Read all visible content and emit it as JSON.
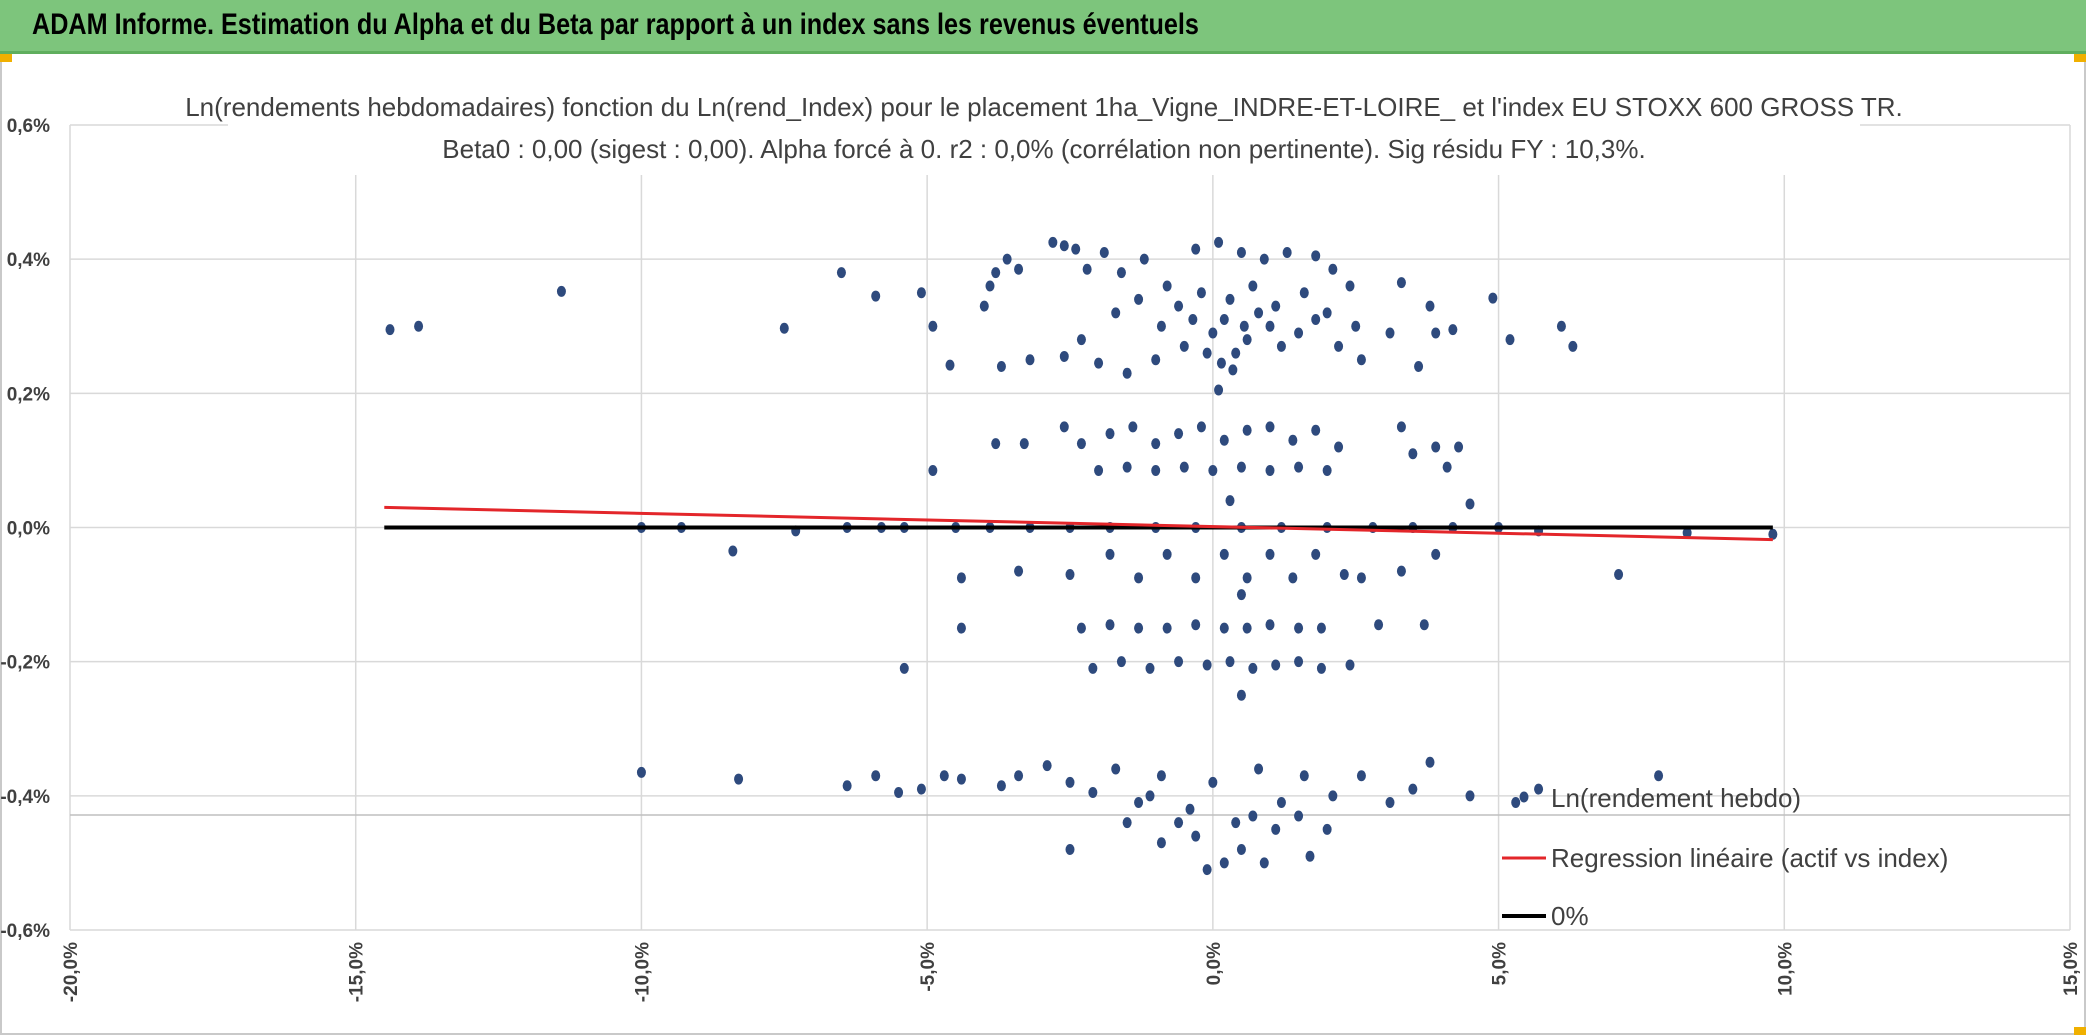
{
  "header": {
    "title": "ADAM Informe. Estimation du Alpha et du Beta par rapport à un index sans les revenus éventuels"
  },
  "colors": {
    "header_bg": "#7dc57c",
    "points": "#2e4a7d",
    "regression": "#e3262a",
    "zero_line": "#000000",
    "grid": "#d9d9d9"
  },
  "chart_data": {
    "type": "scatter",
    "title_line1": "Ln(rendements hebdomadaires) fonction du Ln(rend_Index) pour le placement 1ha_Vigne_INDRE-ET-LOIRE_ et l'index EU STOXX 600 GROSS TR.",
    "title_line2": "Beta0 : 0,00 (sigest : 0,00). Alpha forcé à 0. r2 : 0,0% (corrélation non pertinente). Sig résidu FY : 10,3%.",
    "xlim": [
      -20,
      15
    ],
    "ylim": [
      -0.6,
      0.6
    ],
    "x_ticks": [
      -20,
      -15,
      -10,
      -5,
      0,
      5,
      10,
      15
    ],
    "x_tick_labels": [
      "-20,0%",
      "-15,0%",
      "-10,0%",
      "-5,0%",
      "0,0%",
      "5,0%",
      "10,0%",
      "15,0%"
    ],
    "y_ticks": [
      0.6,
      0.4,
      0.2,
      0.0,
      -0.2,
      -0.4,
      -0.6
    ],
    "y_tick_labels": [
      "0,6%",
      "0,4%",
      "0,2%",
      "0,0%",
      "-0,2%",
      "-0,4%",
      "-0,6%"
    ],
    "grid": true,
    "legend_position": "bottom-right",
    "series": [
      {
        "name": "Ln(rendement hebdo)",
        "kind": "points"
      },
      {
        "name": "Regression linéaire (actif vs index)",
        "kind": "line",
        "x": [
          -14.5,
          9.8
        ],
        "y": [
          0.03,
          -0.018
        ]
      },
      {
        "name": "0%",
        "kind": "line",
        "x": [
          -14.5,
          9.8
        ],
        "y": [
          0.0,
          0.0
        ]
      }
    ],
    "points": [
      [
        -14.4,
        0.295
      ],
      [
        -13.9,
        0.3
      ],
      [
        -11.4,
        0.352
      ],
      [
        -7.5,
        0.297
      ],
      [
        -6.5,
        0.38
      ],
      [
        -5.9,
        0.345
      ],
      [
        -5.1,
        0.35
      ],
      [
        -4.9,
        0.3
      ],
      [
        -4.6,
        0.242
      ],
      [
        -4.0,
        0.33
      ],
      [
        -3.9,
        0.36
      ],
      [
        -3.8,
        0.38
      ],
      [
        -3.6,
        0.4
      ],
      [
        -3.4,
        0.385
      ],
      [
        -3.7,
        0.24
      ],
      [
        -3.2,
        0.25
      ],
      [
        -2.8,
        0.425
      ],
      [
        -2.6,
        0.42
      ],
      [
        -2.4,
        0.415
      ],
      [
        -2.2,
        0.385
      ],
      [
        -1.9,
        0.41
      ],
      [
        -1.6,
        0.38
      ],
      [
        -1.2,
        0.4
      ],
      [
        -0.8,
        0.36
      ],
      [
        -0.3,
        0.415
      ],
      [
        0.1,
        0.425
      ],
      [
        0.5,
        0.41
      ],
      [
        0.9,
        0.4
      ],
      [
        1.3,
        0.41
      ],
      [
        1.8,
        0.405
      ],
      [
        2.1,
        0.385
      ],
      [
        2.4,
        0.36
      ],
      [
        3.3,
        0.365
      ],
      [
        3.8,
        0.33
      ],
      [
        4.2,
        0.295
      ],
      [
        4.9,
        0.342
      ],
      [
        5.2,
        0.28
      ],
      [
        6.1,
        0.3
      ],
      [
        6.3,
        0.27
      ],
      [
        0.1,
        0.205
      ],
      [
        -2.3,
        0.28
      ],
      [
        -2.6,
        0.255
      ],
      [
        -2.0,
        0.245
      ],
      [
        -1.5,
        0.23
      ],
      [
        -1.0,
        0.25
      ],
      [
        -0.5,
        0.27
      ],
      [
        0.0,
        0.29
      ],
      [
        0.2,
        0.31
      ],
      [
        0.4,
        0.26
      ],
      [
        0.6,
        0.28
      ],
      [
        0.8,
        0.32
      ],
      [
        1.0,
        0.3
      ],
      [
        1.2,
        0.27
      ],
      [
        1.5,
        0.29
      ],
      [
        1.8,
        0.31
      ],
      [
        2.2,
        0.27
      ],
      [
        2.6,
        0.25
      ],
      [
        3.1,
        0.29
      ],
      [
        3.6,
        0.24
      ],
      [
        3.9,
        0.29
      ],
      [
        -1.7,
        0.32
      ],
      [
        -1.3,
        0.34
      ],
      [
        -0.9,
        0.3
      ],
      [
        -0.6,
        0.33
      ],
      [
        -0.2,
        0.35
      ],
      [
        0.3,
        0.34
      ],
      [
        0.7,
        0.36
      ],
      [
        1.1,
        0.33
      ],
      [
        1.6,
        0.35
      ],
      [
        2.0,
        0.32
      ],
      [
        2.5,
        0.3
      ],
      [
        -0.1,
        0.26
      ],
      [
        0.15,
        0.245
      ],
      [
        0.35,
        0.235
      ],
      [
        0.55,
        0.3
      ],
      [
        -0.35,
        0.31
      ],
      [
        -3.8,
        0.125
      ],
      [
        -3.3,
        0.125
      ],
      [
        -2.6,
        0.15
      ],
      [
        -2.3,
        0.125
      ],
      [
        -1.8,
        0.14
      ],
      [
        -1.4,
        0.15
      ],
      [
        -1.0,
        0.125
      ],
      [
        -0.6,
        0.14
      ],
      [
        -0.2,
        0.15
      ],
      [
        0.2,
        0.13
      ],
      [
        0.6,
        0.145
      ],
      [
        1.0,
        0.15
      ],
      [
        1.4,
        0.13
      ],
      [
        1.8,
        0.145
      ],
      [
        2.2,
        0.12
      ],
      [
        3.3,
        0.15
      ],
      [
        3.9,
        0.12
      ],
      [
        4.3,
        0.12
      ],
      [
        -2.0,
        0.085
      ],
      [
        -1.5,
        0.09
      ],
      [
        -1.0,
        0.085
      ],
      [
        -0.5,
        0.09
      ],
      [
        0.0,
        0.085
      ],
      [
        0.5,
        0.09
      ],
      [
        1.0,
        0.085
      ],
      [
        1.5,
        0.09
      ],
      [
        2.0,
        0.085
      ],
      [
        -4.9,
        0.085
      ],
      [
        3.5,
        0.11
      ],
      [
        4.1,
        0.09
      ],
      [
        4.5,
        0.035
      ],
      [
        0.3,
        0.04
      ],
      [
        -10.0,
        0.0
      ],
      [
        -9.3,
        0.0
      ],
      [
        -7.3,
        -0.005
      ],
      [
        -6.4,
        0.0
      ],
      [
        -5.8,
        0.0
      ],
      [
        -5.4,
        0.0
      ],
      [
        -4.5,
        0.0
      ],
      [
        -3.9,
        0.0
      ],
      [
        -3.2,
        0.0
      ],
      [
        -2.5,
        0.0
      ],
      [
        -1.8,
        0.0
      ],
      [
        -1.0,
        0.0
      ],
      [
        -0.3,
        0.0
      ],
      [
        0.5,
        0.0
      ],
      [
        1.2,
        0.0
      ],
      [
        2.0,
        0.0
      ],
      [
        2.8,
        0.0
      ],
      [
        3.5,
        0.0
      ],
      [
        4.2,
        0.0
      ],
      [
        5.0,
        0.0
      ],
      [
        5.7,
        -0.005
      ],
      [
        8.3,
        -0.008
      ],
      [
        9.8,
        -0.01
      ],
      [
        -8.4,
        -0.035
      ],
      [
        -4.4,
        -0.075
      ],
      [
        -3.4,
        -0.065
      ],
      [
        -2.5,
        -0.07
      ],
      [
        -1.8,
        -0.04
      ],
      [
        -1.3,
        -0.075
      ],
      [
        -0.8,
        -0.04
      ],
      [
        -0.3,
        -0.075
      ],
      [
        0.2,
        -0.04
      ],
      [
        0.6,
        -0.075
      ],
      [
        1.0,
        -0.04
      ],
      [
        1.4,
        -0.075
      ],
      [
        1.8,
        -0.04
      ],
      [
        2.3,
        -0.07
      ],
      [
        2.6,
        -0.075
      ],
      [
        3.3,
        -0.065
      ],
      [
        3.9,
        -0.04
      ],
      [
        7.1,
        -0.07
      ],
      [
        0.5,
        -0.1
      ],
      [
        -4.4,
        -0.15
      ],
      [
        -2.3,
        -0.15
      ],
      [
        -1.8,
        -0.145
      ],
      [
        -1.3,
        -0.15
      ],
      [
        -0.8,
        -0.15
      ],
      [
        -0.3,
        -0.145
      ],
      [
        0.2,
        -0.15
      ],
      [
        0.6,
        -0.15
      ],
      [
        1.0,
        -0.145
      ],
      [
        1.5,
        -0.15
      ],
      [
        1.9,
        -0.15
      ],
      [
        2.9,
        -0.145
      ],
      [
        3.7,
        -0.145
      ],
      [
        -5.4,
        -0.21
      ],
      [
        -2.1,
        -0.21
      ],
      [
        -1.6,
        -0.2
      ],
      [
        -1.1,
        -0.21
      ],
      [
        -0.6,
        -0.2
      ],
      [
        -0.1,
        -0.205
      ],
      [
        0.3,
        -0.2
      ],
      [
        0.7,
        -0.21
      ],
      [
        1.1,
        -0.205
      ],
      [
        1.5,
        -0.2
      ],
      [
        1.9,
        -0.21
      ],
      [
        2.4,
        -0.205
      ],
      [
        0.5,
        -0.25
      ],
      [
        -10.0,
        -0.365
      ],
      [
        -8.3,
        -0.375
      ],
      [
        -6.4,
        -0.385
      ],
      [
        -5.9,
        -0.37
      ],
      [
        -5.5,
        -0.395
      ],
      [
        -5.1,
        -0.39
      ],
      [
        -4.7,
        -0.37
      ],
      [
        -4.4,
        -0.375
      ],
      [
        -3.7,
        -0.385
      ],
      [
        -3.4,
        -0.37
      ],
      [
        -2.9,
        -0.355
      ],
      [
        -2.5,
        -0.38
      ],
      [
        -2.1,
        -0.395
      ],
      [
        -1.7,
        -0.36
      ],
      [
        -1.3,
        -0.41
      ],
      [
        -0.9,
        -0.37
      ],
      [
        -0.4,
        -0.42
      ],
      [
        0.0,
        -0.38
      ],
      [
        0.4,
        -0.44
      ],
      [
        0.8,
        -0.36
      ],
      [
        1.2,
        -0.41
      ],
      [
        1.6,
        -0.37
      ],
      [
        2.1,
        -0.4
      ],
      [
        2.6,
        -0.37
      ],
      [
        3.1,
        -0.41
      ],
      [
        3.5,
        -0.39
      ],
      [
        3.8,
        -0.35
      ],
      [
        4.5,
        -0.4
      ],
      [
        5.3,
        -0.41
      ],
      [
        5.7,
        -0.39
      ],
      [
        7.8,
        -0.37
      ],
      [
        -2.5,
        -0.48
      ],
      [
        -1.5,
        -0.44
      ],
      [
        -0.9,
        -0.47
      ],
      [
        -0.3,
        -0.46
      ],
      [
        0.2,
        -0.5
      ],
      [
        0.5,
        -0.48
      ],
      [
        0.9,
        -0.5
      ],
      [
        1.7,
        -0.49
      ],
      [
        -0.1,
        -0.51
      ],
      [
        1.1,
        -0.45
      ],
      [
        0.7,
        -0.43
      ],
      [
        -1.1,
        -0.4
      ],
      [
        1.5,
        -0.43
      ],
      [
        2.0,
        -0.45
      ],
      [
        -0.6,
        -0.44
      ]
    ]
  },
  "legend": {
    "points_label": "Ln(rendement hebdo)",
    "regression_label": "Regression linéaire (actif vs index)",
    "zero_label": "0%"
  }
}
